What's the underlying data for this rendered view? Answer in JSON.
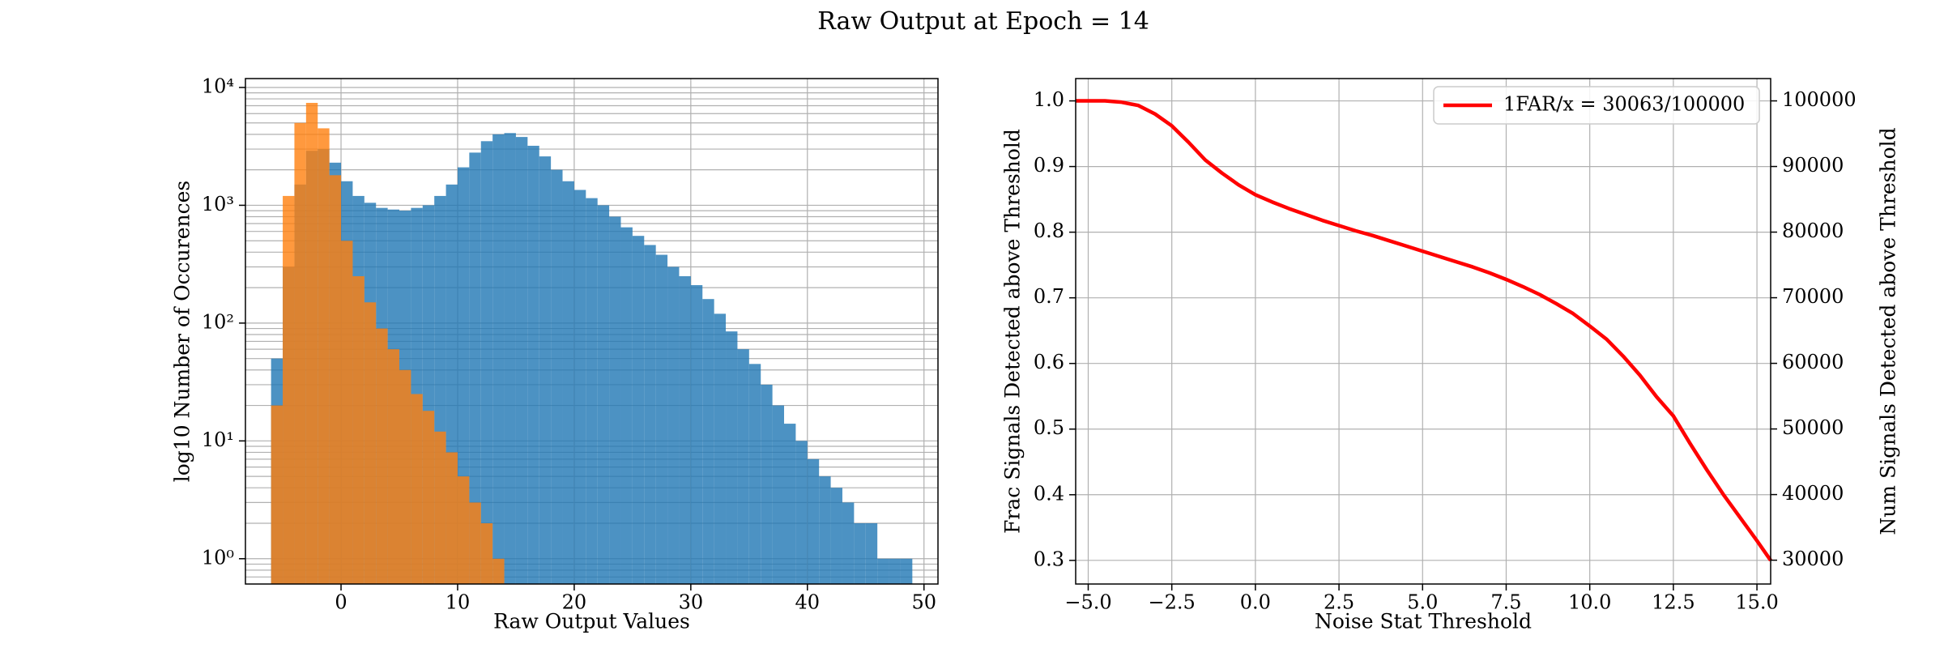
{
  "title": "Raw Output at Epoch = 14",
  "chart_data": [
    {
      "type": "histogram",
      "xlabel": "Raw Output Values",
      "ylabel": "log10 Number of Occurences",
      "bins": [
        -6,
        -5,
        -4,
        -3,
        -2,
        -1,
        0,
        1,
        2,
        3,
        4,
        5,
        6,
        7,
        8,
        9,
        10,
        11,
        12,
        13,
        14,
        15,
        16,
        17,
        18,
        19,
        20,
        21,
        22,
        23,
        24,
        25,
        26,
        27,
        28,
        29,
        30,
        31,
        32,
        33,
        34,
        35,
        36,
        37,
        38,
        39,
        40,
        41,
        42,
        43,
        44,
        45,
        46,
        47,
        48,
        49
      ],
      "series": [
        {
          "color": "#1f77b4",
          "values": [
            50,
            300,
            1500,
            2900,
            3000,
            2300,
            1600,
            1200,
            1050,
            950,
            920,
            900,
            950,
            1000,
            1200,
            1500,
            2100,
            2800,
            3500,
            4000,
            4100,
            3800,
            3200,
            2600,
            2000,
            1600,
            1350,
            1150,
            1000,
            800,
            650,
            550,
            460,
            380,
            300,
            250,
            210,
            160,
            120,
            85,
            60,
            45,
            30,
            20,
            14,
            10,
            7,
            5,
            4,
            3,
            2,
            2,
            1,
            1,
            1
          ]
        },
        {
          "color": "#ff7f0e",
          "values": [
            20,
            1200,
            5000,
            7400,
            4500,
            1800,
            500,
            250,
            150,
            90,
            60,
            40,
            25,
            18,
            12,
            8,
            5,
            3,
            2,
            1,
            0,
            0,
            0,
            0,
            0,
            0,
            0,
            0,
            0,
            0,
            0,
            0,
            0,
            0,
            0,
            0,
            0,
            0,
            0,
            0,
            0,
            0,
            0,
            0,
            0,
            0,
            0,
            0,
            0,
            0,
            0,
            0,
            0,
            0,
            0
          ]
        }
      ],
      "xlim": [
        -8.2,
        51.2
      ],
      "xticks": [
        0,
        10,
        20,
        30,
        40,
        50
      ],
      "ylim": [
        0.61,
        11900
      ],
      "yscale": "log",
      "yticks": [
        {
          "value": 1,
          "label": "10⁰"
        },
        {
          "value": 10,
          "label": "10¹"
        },
        {
          "value": 100,
          "label": "10²"
        },
        {
          "value": 1000,
          "label": "10³"
        },
        {
          "value": 10000,
          "label": "10⁴"
        }
      ],
      "grid": true
    },
    {
      "type": "line",
      "xlabel": "Noise Stat Threshold",
      "ylabel": "Frac Signals Detected above Threshold",
      "y2label": "Num Signals Detected above Threshold",
      "x": [
        -5.375,
        -4.5,
        -4,
        -3.5,
        -3,
        -2.5,
        -2,
        -1.5,
        -1,
        -0.5,
        0,
        0.5,
        1,
        1.5,
        2,
        2.5,
        3,
        3.5,
        4,
        4.5,
        5,
        5.5,
        6,
        6.5,
        7,
        7.5,
        8,
        8.5,
        9,
        9.5,
        10,
        10.5,
        11,
        11.5,
        12,
        12.5,
        13,
        13.5,
        14,
        14.5,
        15,
        15.41
      ],
      "series": [
        {
          "name": "1FAR/x = 30063/100000",
          "color": "#ff0000",
          "values": [
            1.0,
            1.0,
            0.998,
            0.993,
            0.98,
            0.962,
            0.937,
            0.91,
            0.89,
            0.872,
            0.857,
            0.846,
            0.836,
            0.827,
            0.818,
            0.81,
            0.802,
            0.795,
            0.787,
            0.779,
            0.771,
            0.763,
            0.755,
            0.747,
            0.738,
            0.728,
            0.717,
            0.705,
            0.691,
            0.676,
            0.657,
            0.637,
            0.611,
            0.582,
            0.549,
            0.52,
            0.478,
            0.438,
            0.4,
            0.365,
            0.33,
            0.3
          ]
        }
      ],
      "xlim": [
        -5.375,
        15.41
      ],
      "xticks": [
        {
          "value": -5,
          "label": "−5.0"
        },
        {
          "value": -2.5,
          "label": "−2.5"
        },
        {
          "value": 0,
          "label": "0.0"
        },
        {
          "value": 2.5,
          "label": "2.5"
        },
        {
          "value": 5,
          "label": "5.0"
        },
        {
          "value": 7.5,
          "label": "7.5"
        },
        {
          "value": 10,
          "label": "10.0"
        },
        {
          "value": 12.5,
          "label": "12.5"
        },
        {
          "value": 15,
          "label": "15.0"
        }
      ],
      "ylim": [
        0.264,
        1.034
      ],
      "yticks": [
        0.3,
        0.4,
        0.5,
        0.6,
        0.7,
        0.8,
        0.9,
        {
          "value": 1,
          "label": "1.0"
        }
      ],
      "y2lim": [
        26370,
        103400
      ],
      "y2ticks": [
        30000,
        40000,
        50000,
        60000,
        70000,
        80000,
        90000,
        100000
      ],
      "grid": true,
      "legend": "upper right"
    }
  ]
}
